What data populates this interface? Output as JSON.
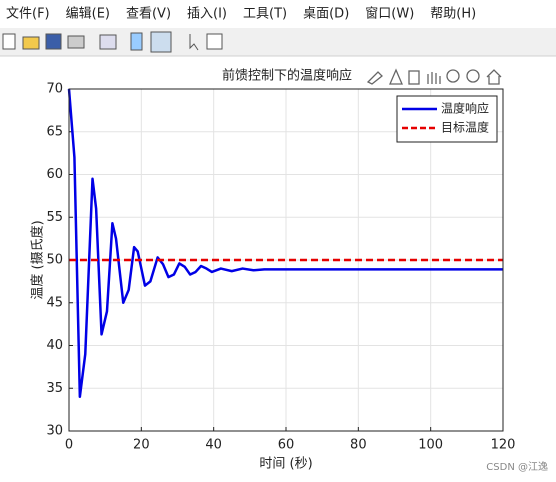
{
  "menu": [
    "文件(F)",
    "编辑(E)",
    "查看(V)",
    "插入(I)",
    "工具(T)",
    "桌面(D)",
    "窗口(W)",
    "帮助(H)"
  ],
  "watermark": "CSDN @江逸",
  "chart_data": {
    "type": "line",
    "title": "前馈控制下的温度响应",
    "x_label": "时间 (秒)",
    "y_label": "温度 (摄氏度)",
    "x": [
      0,
      1.5,
      3,
      4.5,
      6.5,
      7.5,
      9,
      10.5,
      12,
      13,
      15,
      16.5,
      18,
      19,
      21,
      22.5,
      24.5,
      26,
      27.5,
      29,
      30.5,
      32,
      33.5,
      35,
      36.5,
      38,
      39.5,
      42,
      45,
      48,
      51,
      54,
      60,
      70,
      80,
      100,
      120
    ],
    "series": [
      {
        "name": "温度响应",
        "color": "#0000e6",
        "values": [
          70,
          62,
          34,
          39,
          59.5,
          56,
          41.3,
          44,
          54.3,
          52.5,
          45,
          46.5,
          51.5,
          51,
          47,
          47.5,
          50.3,
          49.5,
          48,
          48.3,
          49.6,
          49.2,
          48.3,
          48.6,
          49.3,
          49,
          48.6,
          49,
          48.7,
          49,
          48.8,
          48.9,
          48.9,
          48.9,
          48.9,
          48.9,
          48.9
        ]
      }
    ],
    "reference_line": {
      "name": "目标温度",
      "value": 50,
      "color": "#e60000"
    },
    "xlim": [
      0,
      120
    ],
    "xticks": [
      0,
      20,
      40,
      60,
      80,
      100,
      120
    ],
    "ylim": [
      30,
      70
    ],
    "yticks": [
      30,
      35,
      40,
      45,
      50,
      55,
      60,
      65,
      70
    ],
    "grid": true,
    "legend": "top-right"
  }
}
